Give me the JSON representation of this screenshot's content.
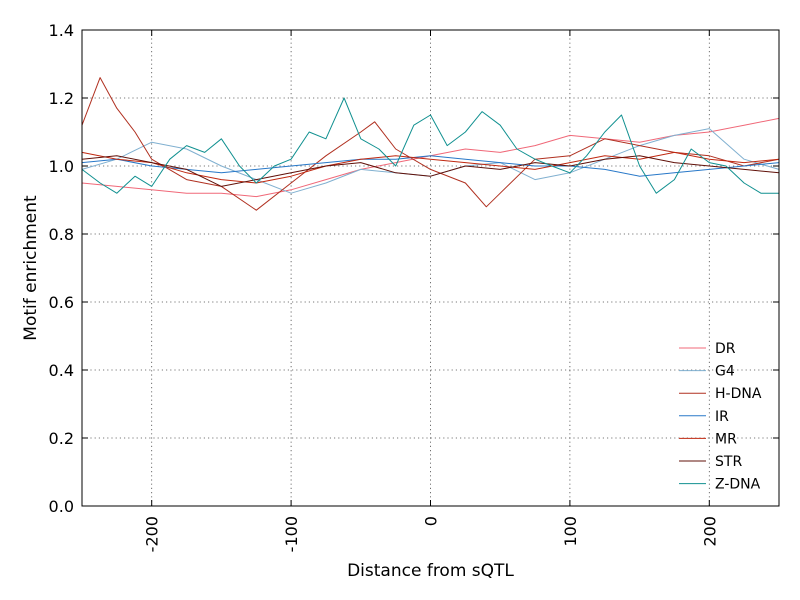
{
  "chart_data": {
    "type": "line",
    "title": "",
    "xlabel": "Distance from sQTL",
    "ylabel": "Motif enrichment",
    "xlim": [
      -250,
      250
    ],
    "ylim": [
      0,
      1.4
    ],
    "xticks": [
      -200,
      -100,
      0,
      100,
      200
    ],
    "xtick_labels": [
      "-200",
      "-100",
      "0",
      "100",
      "200"
    ],
    "yticks": [
      0,
      0.2,
      0.4,
      0.6,
      0.8,
      1.0,
      1.2,
      1.4
    ],
    "ytick_labels": [
      "0.0",
      "0.2",
      "0.4",
      "0.6",
      "0.8",
      "1.0",
      "1.2",
      "1.4"
    ],
    "grid": true,
    "legend_position": "lower-right",
    "series": [
      {
        "name": "DR",
        "color": "#f06878",
        "x": [
          -250,
          -225,
          -200,
          -175,
          -150,
          -125,
          -100,
          -75,
          -50,
          -25,
          0,
          25,
          50,
          75,
          100,
          125,
          150,
          175,
          200,
          225,
          250
        ],
        "values": [
          0.95,
          0.94,
          0.93,
          0.92,
          0.92,
          0.91,
          0.93,
          0.96,
          0.99,
          1.01,
          1.03,
          1.05,
          1.04,
          1.06,
          1.09,
          1.08,
          1.07,
          1.09,
          1.1,
          1.12,
          1.14
        ]
      },
      {
        "name": "G4",
        "color": "#80b0d0",
        "x": [
          -250,
          -225,
          -200,
          -175,
          -150,
          -125,
          -100,
          -75,
          -50,
          -25,
          0,
          25,
          50,
          75,
          100,
          125,
          150,
          175,
          200,
          225,
          250
        ],
        "values": [
          0.99,
          1.02,
          1.07,
          1.05,
          1.0,
          0.96,
          0.92,
          0.95,
          0.99,
          0.98,
          0.97,
          1.0,
          1.01,
          0.96,
          0.98,
          1.02,
          1.06,
          1.09,
          1.11,
          1.02,
          0.99
        ]
      },
      {
        "name": "H-DNA",
        "color": "#b03020",
        "x": [
          -250,
          -237,
          -225,
          -212,
          -200,
          -175,
          -150,
          -125,
          -100,
          -75,
          -50,
          -40,
          -25,
          0,
          25,
          40,
          50,
          75,
          100,
          125,
          150,
          175,
          200,
          225,
          250
        ],
        "values": [
          1.12,
          1.26,
          1.17,
          1.1,
          1.02,
          0.96,
          0.94,
          0.87,
          0.95,
          1.03,
          1.1,
          1.13,
          1.05,
          0.99,
          0.95,
          0.88,
          0.92,
          1.02,
          1.03,
          1.08,
          1.06,
          1.04,
          1.03,
          1.0,
          1.02
        ]
      },
      {
        "name": "IR",
        "color": "#2878c8",
        "x": [
          -250,
          -225,
          -200,
          -175,
          -150,
          -125,
          -100,
          -75,
          -50,
          -25,
          0,
          25,
          50,
          75,
          100,
          125,
          150,
          175,
          200,
          225,
          250
        ],
        "values": [
          1.01,
          1.02,
          1.0,
          0.99,
          0.98,
          0.99,
          1.0,
          1.01,
          1.02,
          1.02,
          1.03,
          1.02,
          1.01,
          1.0,
          1.0,
          0.99,
          0.97,
          0.98,
          0.99,
          1.0,
          1.01
        ]
      },
      {
        "name": "MR",
        "color": "#c02810",
        "x": [
          -250,
          -225,
          -200,
          -175,
          -150,
          -125,
          -100,
          -75,
          -50,
          -25,
          0,
          25,
          50,
          75,
          100,
          125,
          150,
          175,
          200,
          225,
          250
        ],
        "values": [
          1.04,
          1.02,
          1.01,
          0.98,
          0.96,
          0.95,
          0.97,
          1.0,
          1.02,
          1.03,
          1.02,
          1.01,
          1.0,
          0.99,
          1.01,
          1.03,
          1.02,
          1.04,
          1.02,
          1.01,
          1.02
        ]
      },
      {
        "name": "STR",
        "color": "#601008",
        "x": [
          -250,
          -225,
          -200,
          -175,
          -150,
          -125,
          -100,
          -75,
          -50,
          -25,
          0,
          25,
          50,
          75,
          100,
          125,
          150,
          175,
          200,
          225,
          250
        ],
        "values": [
          1.02,
          1.03,
          1.01,
          0.99,
          0.94,
          0.96,
          0.98,
          1.0,
          1.01,
          0.98,
          0.97,
          1.0,
          0.99,
          1.01,
          1.0,
          1.02,
          1.03,
          1.01,
          1.0,
          0.99,
          0.98
        ]
      },
      {
        "name": "Z-DNA",
        "color": "#109090",
        "x": [
          -250,
          -237,
          -225,
          -212,
          -200,
          -187,
          -175,
          -162,
          -150,
          -137,
          -125,
          -112,
          -100,
          -87,
          -75,
          -62,
          -50,
          -37,
          -25,
          -12,
          0,
          12,
          25,
          37,
          50,
          62,
          75,
          87,
          100,
          112,
          125,
          137,
          150,
          162,
          175,
          187,
          200,
          212,
          225,
          237,
          250
        ],
        "values": [
          0.99,
          0.95,
          0.92,
          0.97,
          0.94,
          1.02,
          1.06,
          1.04,
          1.08,
          1.0,
          0.95,
          1.0,
          1.02,
          1.1,
          1.08,
          1.2,
          1.08,
          1.05,
          1.0,
          1.12,
          1.15,
          1.06,
          1.1,
          1.16,
          1.12,
          1.05,
          1.02,
          1.0,
          0.98,
          1.03,
          1.1,
          1.15,
          1.0,
          0.92,
          0.96,
          1.05,
          1.01,
          1.0,
          0.95,
          0.92,
          0.92
        ]
      }
    ]
  }
}
